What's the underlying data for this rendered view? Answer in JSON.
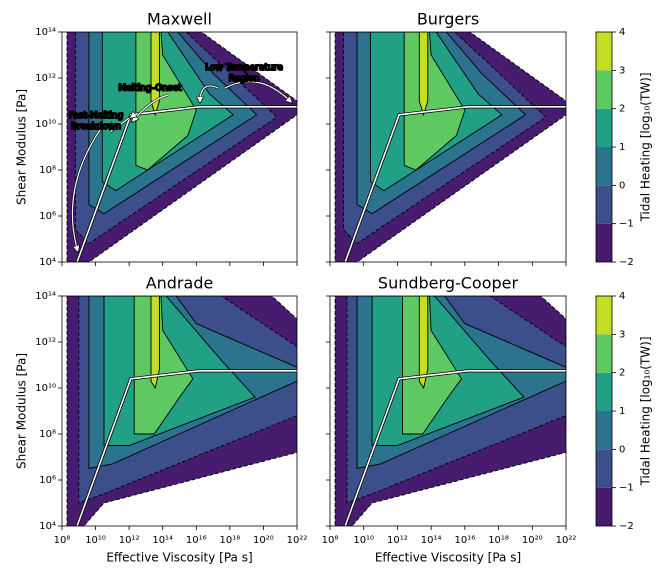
{
  "chart_data": [
    {
      "type": "contour",
      "title": "Maxwell",
      "ylabel": "Shear Modulus [Pa]",
      "xlim": [
        8,
        22
      ],
      "ylim": [
        4,
        14
      ],
      "xticks": [
        8,
        10,
        12,
        14,
        16,
        18,
        20,
        22
      ],
      "yticks": [
        {
          "value": 4,
          "label": "10⁴"
        },
        {
          "value": 6,
          "label": "10⁶"
        },
        {
          "value": 8,
          "label": "10⁸"
        },
        {
          "value": 10,
          "label": "10¹⁰"
        },
        {
          "value": 12,
          "label": "10¹²"
        },
        {
          "value": 14,
          "label": "10¹⁴"
        }
      ],
      "annotations": [
        "Low Temperature Region",
        "Melting-Onset",
        "Fast-Melting Breakdown"
      ]
    },
    {
      "type": "contour",
      "title": "Burgers",
      "xlim": [
        8,
        22
      ],
      "ylim": [
        4,
        14
      ],
      "xticks": [
        8,
        10,
        12,
        14,
        16,
        18,
        20,
        22
      ],
      "yticks": [
        4,
        6,
        8,
        10,
        12,
        14
      ],
      "colorbar": {
        "label": "Tidal Heating [log₁₀(TW)]",
        "ticks": [
          {
            "value": -2,
            "label": "−2"
          },
          {
            "value": -1,
            "label": "−1"
          },
          0,
          1,
          2,
          3,
          4
        ],
        "colors": [
          "#471c6e",
          "#3c4f8a",
          "#2c738e",
          "#22a085",
          "#5ec962",
          "#c4df23"
        ]
      }
    },
    {
      "type": "contour",
      "title": "Andrade",
      "ylabel": "Shear Modulus [Pa]",
      "xlabel": "Effective Viscosity [Pa s]",
      "xlim": [
        8,
        22
      ],
      "ylim": [
        4,
        14
      ],
      "xticks": [
        {
          "value": 8,
          "label": "10⁸"
        },
        {
          "value": 10,
          "label": "10¹⁰"
        },
        {
          "value": 12,
          "label": "10¹²"
        },
        {
          "value": 14,
          "label": "10¹⁴"
        },
        {
          "value": 16,
          "label": "10¹⁶"
        },
        {
          "value": 18,
          "label": "10¹⁸"
        },
        {
          "value": 20,
          "label": "10²⁰"
        },
        {
          "value": 22,
          "label": "10²²"
        }
      ],
      "yticks": [
        {
          "value": 4,
          "label": "10⁴"
        },
        {
          "value": 6,
          "label": "10⁶"
        },
        {
          "value": 8,
          "label": "10⁸"
        },
        {
          "value": 10,
          "label": "10¹⁰"
        },
        {
          "value": 12,
          "label": "10¹²"
        },
        {
          "value": 14,
          "label": "10¹⁴"
        }
      ]
    },
    {
      "type": "contour",
      "title": "Sundberg-Cooper",
      "xlabel": "Effective Viscosity [Pa s]",
      "xlim": [
        8,
        22
      ],
      "ylim": [
        4,
        14
      ],
      "xticks": [
        {
          "value": 8,
          "label": "10⁸"
        },
        {
          "value": 10,
          "label": "10¹⁰"
        },
        {
          "value": 12,
          "label": "10¹²"
        },
        {
          "value": 14,
          "label": "10¹⁴"
        },
        {
          "value": 16,
          "label": "10¹⁶"
        },
        {
          "value": 18,
          "label": "10¹⁸"
        },
        {
          "value": 20,
          "label": "10²⁰"
        },
        {
          "value": 22,
          "label": "10²²"
        }
      ],
      "yticks": [
        4,
        6,
        8,
        10,
        12,
        14
      ],
      "colorbar": {
        "label": "Tidal Heating [log₁₀(TW)]",
        "ticks": [
          {
            "value": -2,
            "label": "−2"
          },
          {
            "value": -1,
            "label": "−1"
          },
          0,
          1,
          2,
          3,
          4
        ],
        "colors": [
          "#471c6e",
          "#3c4f8a",
          "#2c738e",
          "#22a085",
          "#5ec962",
          "#c4df23"
        ]
      }
    }
  ]
}
